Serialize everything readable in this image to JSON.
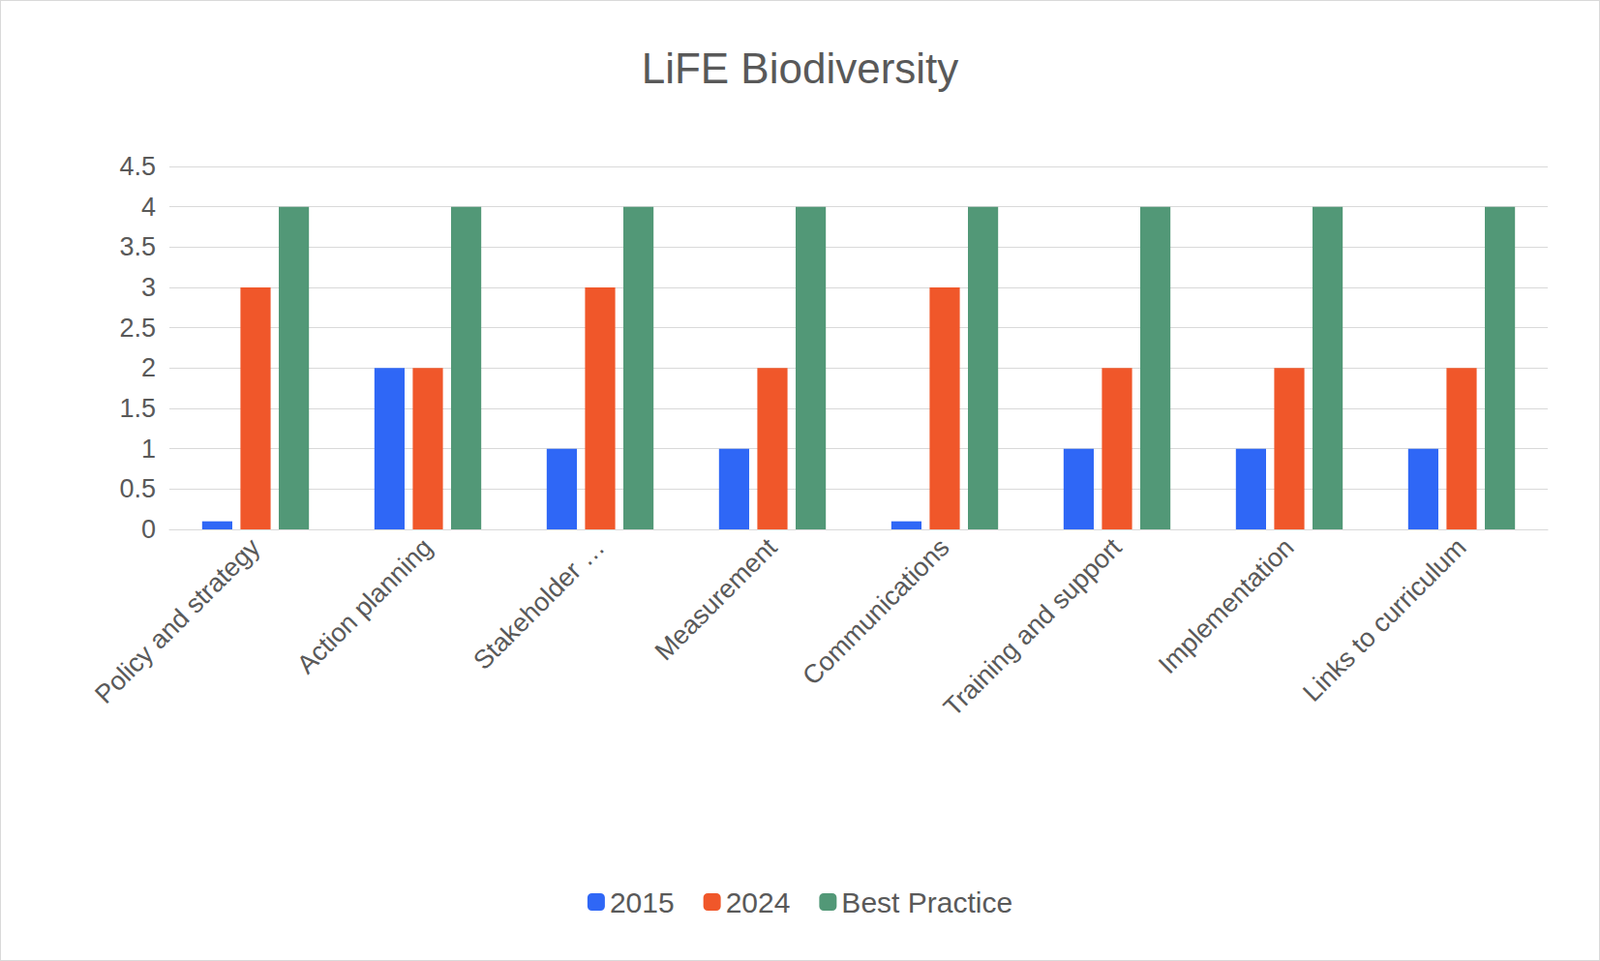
{
  "chart_data": {
    "type": "bar",
    "title": "LiFE Biodiversity",
    "categories": [
      "Policy and strategy",
      "Action planning",
      "Stakeholder …",
      "Measurement",
      "Communications",
      "Training and support",
      "Implementation",
      "Links to curriculum"
    ],
    "series": [
      {
        "name": "2015",
        "color": "#2f67f6",
        "values": [
          0.1,
          2,
          1,
          1,
          0.1,
          1,
          1,
          1
        ]
      },
      {
        "name": "2024",
        "color": "#f0572a",
        "values": [
          3,
          2,
          3,
          2,
          3,
          2,
          2,
          2
        ]
      },
      {
        "name": "Best Practice",
        "color": "#529877",
        "values": [
          4,
          4,
          4,
          4,
          4,
          4,
          4,
          4
        ]
      }
    ],
    "ylim": [
      0,
      4.5
    ],
    "yticks": [
      0,
      0.5,
      1,
      1.5,
      2,
      2.5,
      3,
      3.5,
      4,
      4.5
    ],
    "grid": true,
    "legend": "bottom"
  }
}
